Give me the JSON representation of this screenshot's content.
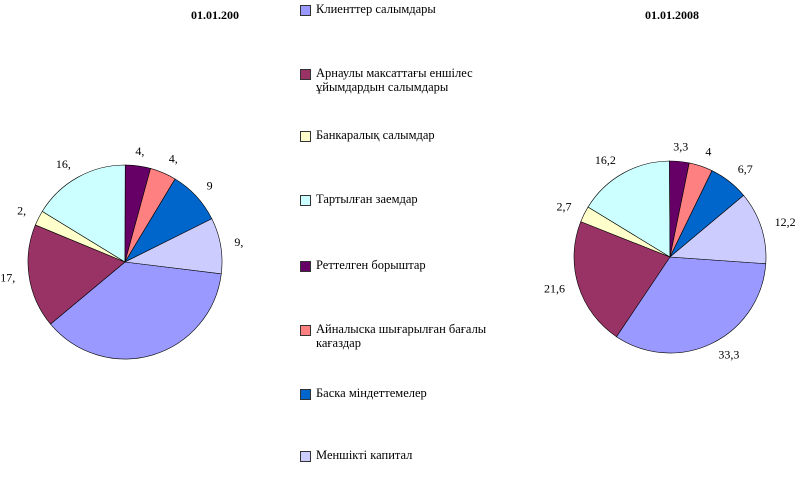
{
  "chart_data": [
    {
      "type": "pie",
      "title": "01.01.200",
      "categories": [
        "Клиенттер салымдары",
        "Арнаулы максаттағы еншілес ұйымдардын салымдары",
        "Банкаралық салымдар",
        "Тартылған заемдар",
        "Реттелген борыштар",
        "Айналыска шығарылған бағалы кағаздар",
        "Баска міндеттемелер",
        "Меншікті капитал"
      ],
      "colors": [
        "#9999ff",
        "#993366",
        "#ffffcc",
        "#ccffff",
        "#660066",
        "#ff8080",
        "#0066cc",
        "#ccccff"
      ],
      "values": [
        37,
        17.3,
        2.5,
        16.3,
        4.2,
        4.4,
        9,
        9.3
      ],
      "value_labels": [
        null,
        "17,",
        "2,",
        "16,",
        "4,",
        "4,",
        "9",
        "9,"
      ]
    },
    {
      "type": "pie",
      "title": "01.01.2008",
      "values": [
        33.3,
        21.6,
        2.7,
        16.2,
        3.3,
        4,
        6.7,
        12.2
      ],
      "value_labels": [
        "33,3",
        "21,6",
        "2,7",
        "16,2",
        "3,3",
        "4",
        "6,7",
        "12,2"
      ]
    }
  ]
}
